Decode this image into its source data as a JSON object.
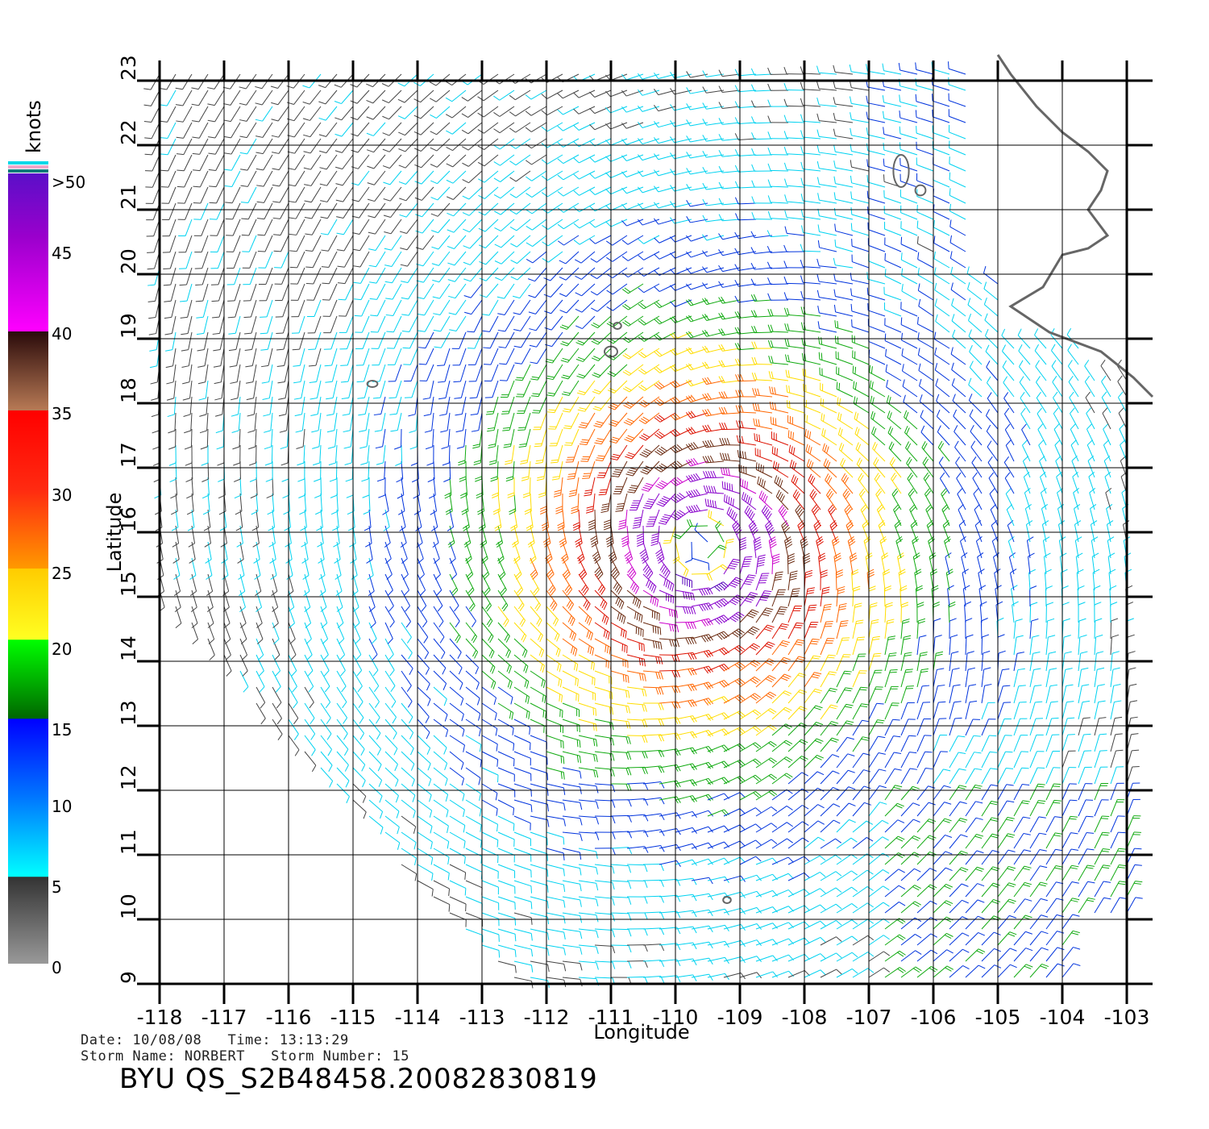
{
  "colorbar": {
    "unit_label": "knots",
    "tick_labels": [
      ">50",
      "45",
      "40",
      "35",
      "30",
      "25",
      "20",
      "15",
      "10",
      "5",
      "0"
    ]
  },
  "map": {
    "x_axis_label": "Longitude",
    "y_axis_label": "Latitude",
    "lon_ticks": [
      "-118",
      "-117",
      "-116",
      "-115",
      "-114",
      "-113",
      "-112",
      "-111",
      "-110",
      "-109",
      "-108",
      "-107",
      "-106",
      "-105",
      "-104",
      "-103"
    ],
    "lat_ticks": [
      "9",
      "10",
      "11",
      "12",
      "13",
      "14",
      "15",
      "16",
      "17",
      "18",
      "19",
      "20",
      "21",
      "22",
      "23"
    ],
    "lon_range": [
      -118,
      -103
    ],
    "lat_range": [
      9,
      23
    ],
    "storm_center": {
      "lon": -109.6,
      "lat": 15.8
    },
    "wind_bins": [
      {
        "max_knots": 5,
        "color": "#444444"
      },
      {
        "max_knots": 10,
        "color": "#00d2f0"
      },
      {
        "max_knots": 15,
        "color": "#0033dd"
      },
      {
        "max_knots": 20,
        "color": "#11aa11"
      },
      {
        "max_knots": 25,
        "color": "#ffdd00"
      },
      {
        "max_knots": 30,
        "color": "#ff6600"
      },
      {
        "max_knots": 35,
        "color": "#dd1100"
      },
      {
        "max_knots": 40,
        "color": "#6a2a10"
      },
      {
        "max_knots": 45,
        "color": "#cc00cc"
      },
      {
        "max_knots": 50,
        "color": "#8800cc"
      },
      {
        "max_knots": 999,
        "color": "#5500bb"
      }
    ]
  },
  "footer": {
    "line1": "Date: 10/08/08   Time: 13:13:29",
    "line2": "Storm Name: NORBERT   Storm Number: 15",
    "title": "BYU QS_S2B48458.20082830819"
  }
}
